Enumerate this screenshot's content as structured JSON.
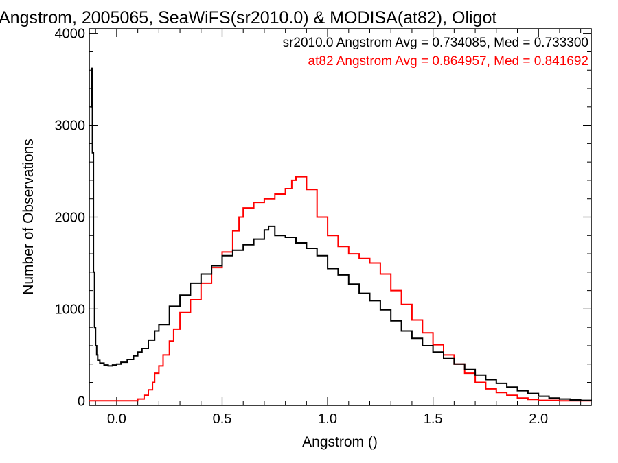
{
  "chart_data": {
    "type": "line",
    "title": "Angstrom, 2005065, SeaWiFS(sr2010.0) & MODISA(at82), Oligot",
    "xlabel": "Angstrom ()",
    "ylabel": "Number of Observations",
    "xlim": [
      -0.13,
      2.25
    ],
    "ylim": [
      -50,
      4050
    ],
    "xticks": [
      0.0,
      0.5,
      1.0,
      1.5,
      2.0
    ],
    "xtick_labels": [
      "0.0",
      "0.5",
      "1.0",
      "1.5",
      "2.0"
    ],
    "yticks": [
      0,
      1000,
      2000,
      3000,
      4000
    ],
    "ytick_labels": [
      "0",
      "1000",
      "2000",
      "3000",
      "4000"
    ],
    "grid": false,
    "legend_position": "top-right",
    "series": [
      {
        "label": "sr2010.0 Angstrom Avg = 0.734085, Med = 0.733300",
        "color": "#000000",
        "x": [
          -0.125,
          -0.12,
          -0.115,
          -0.11,
          -0.105,
          -0.1,
          -0.095,
          -0.09,
          -0.08,
          -0.06,
          -0.04,
          -0.02,
          0.0,
          0.02,
          0.05,
          0.08,
          0.1,
          0.12,
          0.15,
          0.18,
          0.2,
          0.25,
          0.3,
          0.35,
          0.4,
          0.45,
          0.5,
          0.55,
          0.6,
          0.65,
          0.7,
          0.72,
          0.75,
          0.8,
          0.85,
          0.9,
          0.95,
          1.0,
          1.05,
          1.1,
          1.15,
          1.2,
          1.25,
          1.3,
          1.35,
          1.4,
          1.45,
          1.5,
          1.55,
          1.6,
          1.65,
          1.7,
          1.75,
          1.8,
          1.85,
          1.9,
          1.95,
          2.0,
          2.05,
          2.1,
          2.15,
          2.2,
          2.25
        ],
        "y": [
          3200,
          3620,
          2700,
          1400,
          800,
          600,
          500,
          440,
          410,
          390,
          380,
          390,
          400,
          420,
          450,
          490,
          530,
          570,
          660,
          760,
          830,
          1030,
          1150,
          1280,
          1380,
          1470,
          1580,
          1640,
          1700,
          1760,
          1860,
          1900,
          1800,
          1780,
          1720,
          1660,
          1580,
          1440,
          1370,
          1270,
          1170,
          1090,
          990,
          870,
          760,
          680,
          600,
          530,
          460,
          400,
          340,
          280,
          230,
          190,
          150,
          110,
          80,
          50,
          30,
          20,
          10,
          5,
          0
        ]
      },
      {
        "label": "at82 Angstrom Avg = 0.864957, Med = 0.841692",
        "color": "#ff0000",
        "x": [
          -0.13,
          -0.05,
          0.0,
          0.05,
          0.1,
          0.13,
          0.15,
          0.17,
          0.18,
          0.2,
          0.22,
          0.25,
          0.27,
          0.3,
          0.35,
          0.4,
          0.45,
          0.5,
          0.55,
          0.58,
          0.6,
          0.65,
          0.7,
          0.75,
          0.8,
          0.83,
          0.85,
          0.9,
          0.95,
          1.0,
          1.05,
          1.1,
          1.15,
          1.2,
          1.25,
          1.3,
          1.35,
          1.4,
          1.45,
          1.5,
          1.55,
          1.6,
          1.65,
          1.7,
          1.75,
          1.8,
          1.85,
          1.9,
          1.95,
          2.0,
          2.1,
          2.25
        ],
        "y": [
          0,
          0,
          0,
          0,
          20,
          60,
          120,
          200,
          300,
          380,
          500,
          650,
          780,
          960,
          1100,
          1280,
          1450,
          1620,
          1850,
          2000,
          2100,
          2160,
          2200,
          2250,
          2310,
          2400,
          2440,
          2300,
          2000,
          1800,
          1680,
          1600,
          1550,
          1500,
          1380,
          1200,
          1050,
          880,
          740,
          610,
          500,
          400,
          300,
          200,
          130,
          90,
          60,
          30,
          15,
          5,
          0,
          0
        ]
      }
    ]
  }
}
